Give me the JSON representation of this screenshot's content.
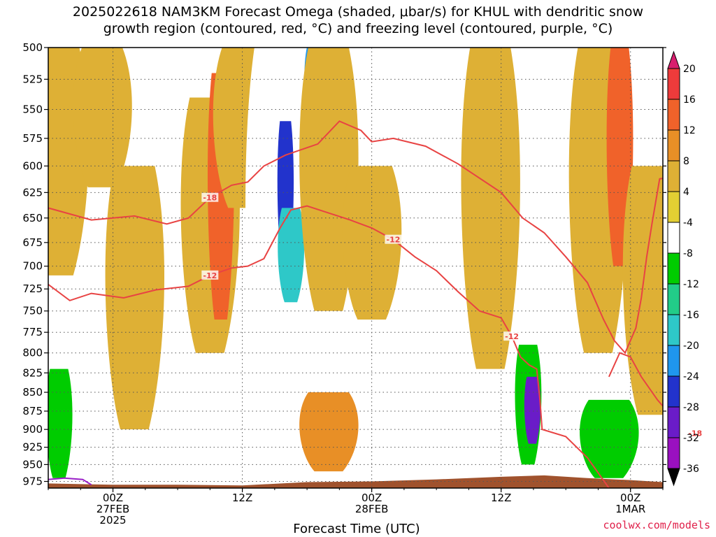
{
  "title_line1": "2025022618 NAM3KM Forecast Omega (shaded, μbar/s) for KHUL with dendritic snow",
  "title_line2": "growth region (contoured, red, °C) and freezing level (contoured, purple, °C)",
  "credit": "coolwx.com/models",
  "chart_data": {
    "type": "heatmap",
    "title": "2025022618 NAM3KM Forecast Omega (shaded, μbar/s) for KHUL with dendritic snow growth region (contoured, red, °C) and freezing level (contoured, purple, °C)",
    "xlabel": "Forecast Time (UTC)",
    "ylabel": "",
    "x_range_hours": [
      -6,
      51
    ],
    "y_range_hpa": [
      500,
      985
    ],
    "y_ticks": [
      500,
      525,
      550,
      575,
      600,
      625,
      650,
      675,
      700,
      725,
      750,
      775,
      800,
      825,
      850,
      875,
      900,
      925,
      950,
      975
    ],
    "x_ticks": [
      {
        "hour": 0,
        "labels": [
          "00Z",
          "27FEB",
          "2025"
        ]
      },
      {
        "hour": 12,
        "labels": [
          "12Z"
        ]
      },
      {
        "hour": 24,
        "labels": [
          "00Z",
          "28FEB"
        ]
      },
      {
        "hour": 36,
        "labels": [
          "12Z"
        ]
      },
      {
        "hour": 48,
        "labels": [
          "00Z",
          "1MAR"
        ]
      }
    ],
    "grid": true,
    "colorbar": {
      "levels": [
        20,
        16,
        12,
        8,
        4,
        -4,
        -8,
        -12,
        -16,
        -20,
        -24,
        -28,
        -32,
        -36
      ],
      "colors": [
        "#d81e6e",
        "#ee3b3b",
        "#f0622a",
        "#e88f26",
        "#deb035",
        "#e3cf33",
        "#ffffff",
        "#00cc00",
        "#22cc88",
        "#2ec8c8",
        "#1f96ee",
        "#2233cc",
        "#6a1cc8",
        "#9a10c0",
        "#a8a8a8",
        "#000000"
      ]
    },
    "omega_regions": [
      {
        "hour": -5,
        "p_top": 500,
        "p_bot": 710,
        "value": 5
      },
      {
        "hour": -1,
        "p_top": 500,
        "p_bot": 620,
        "value": 5
      },
      {
        "hour": 2,
        "p_top": 600,
        "p_bot": 900,
        "value": 5
      },
      {
        "hour": 9,
        "p_top": 540,
        "p_bot": 800,
        "value": 8
      },
      {
        "hour": 10,
        "p_top": 520,
        "p_bot": 760,
        "value": 13
      },
      {
        "hour": 12,
        "p_top": 500,
        "p_bot": 640,
        "value": 5
      },
      {
        "hour": 15,
        "p_top": 500,
        "p_bot": 900,
        "value": -6
      },
      {
        "hour": 16,
        "p_top": 560,
        "p_bot": 700,
        "value": -26
      },
      {
        "hour": 16.5,
        "p_top": 640,
        "p_bot": 740,
        "value": -18
      },
      {
        "hour": 18.5,
        "p_top": 500,
        "p_bot": 560,
        "value": -22
      },
      {
        "hour": 20,
        "p_top": 500,
        "p_bot": 750,
        "value": 6
      },
      {
        "hour": 24,
        "p_top": 600,
        "p_bot": 760,
        "value": 5
      },
      {
        "hour": 20,
        "p_top": 850,
        "p_bot": 960,
        "value": 9
      },
      {
        "hour": 35,
        "p_top": 500,
        "p_bot": 820,
        "value": 5
      },
      {
        "hour": 38.5,
        "p_top": 790,
        "p_bot": 950,
        "value": -10
      },
      {
        "hour": 38.9,
        "p_top": 830,
        "p_bot": 920,
        "value": -29
      },
      {
        "hour": 45,
        "p_top": 500,
        "p_bot": 800,
        "value": 8
      },
      {
        "hour": 47,
        "p_top": 500,
        "p_bot": 700,
        "value": 14
      },
      {
        "hour": 50,
        "p_top": 600,
        "p_bot": 880,
        "value": 5
      },
      {
        "hour": -5,
        "p_top": 820,
        "p_bot": 970,
        "value": -10
      },
      {
        "hour": 2,
        "p_top": 900,
        "p_bot": 970,
        "value": -6
      },
      {
        "hour": 46,
        "p_top": 860,
        "p_bot": 970,
        "value": -9
      }
    ],
    "contours": [
      {
        "level": -18,
        "color": "#e84343",
        "label": "-18",
        "points": [
          [
            -6,
            640
          ],
          [
            -2,
            652
          ],
          [
            2,
            648
          ],
          [
            5,
            656
          ],
          [
            7,
            650
          ],
          [
            9,
            630
          ],
          [
            11,
            618
          ],
          [
            12.5,
            615
          ],
          [
            14,
            600
          ],
          [
            16,
            590
          ],
          [
            19,
            580
          ],
          [
            21,
            560
          ],
          [
            23,
            568
          ],
          [
            24,
            578
          ],
          [
            26,
            575
          ],
          [
            29,
            582
          ],
          [
            32,
            598
          ],
          [
            36,
            625
          ],
          [
            38,
            650
          ],
          [
            40,
            665
          ],
          [
            42,
            690
          ],
          [
            44,
            718
          ],
          [
            45.5,
            760
          ],
          [
            46.5,
            785
          ],
          [
            47.5,
            800
          ],
          [
            48.5,
            770
          ],
          [
            49,
            735
          ],
          [
            49.5,
            690
          ],
          [
            50,
            655
          ],
          [
            50.7,
            612
          ],
          [
            52,
            610
          ],
          [
            53,
            612
          ],
          [
            55,
            640
          ]
        ]
      },
      {
        "level": -12,
        "color": "#e84343",
        "label": "-12",
        "points": [
          [
            -6,
            720
          ],
          [
            -4,
            738
          ],
          [
            -2,
            730
          ],
          [
            1,
            735
          ],
          [
            4,
            726
          ],
          [
            7,
            722
          ],
          [
            9,
            710
          ],
          [
            11,
            702
          ],
          [
            12.5,
            700
          ],
          [
            14,
            692
          ],
          [
            15.5,
            660
          ],
          [
            16.5,
            642
          ],
          [
            18,
            638
          ],
          [
            20,
            645
          ],
          [
            22,
            652
          ],
          [
            24,
            660
          ],
          [
            26,
            672
          ],
          [
            28,
            690
          ],
          [
            30,
            705
          ],
          [
            32,
            728
          ],
          [
            34,
            750
          ],
          [
            36,
            758
          ],
          [
            37,
            780
          ],
          [
            37.8,
            805
          ],
          [
            38.6,
            815
          ],
          [
            39.3,
            820
          ],
          [
            39.6,
            860
          ],
          [
            39.8,
            900
          ],
          [
            42,
            910
          ],
          [
            44,
            940
          ],
          [
            46,
            985
          ]
        ]
      },
      {
        "level": -18,
        "color": "#e84343",
        "label": "-18",
        "points": [
          [
            46,
            830
          ],
          [
            47,
            800
          ],
          [
            48,
            805
          ],
          [
            49,
            830
          ],
          [
            50.5,
            860
          ],
          [
            52,
            885
          ],
          [
            54,
            905
          ],
          [
            55,
            910
          ]
        ]
      },
      {
        "level": 0,
        "color": "#9a20c8",
        "label": "",
        "points": [
          [
            -6,
            972
          ],
          [
            -4.5,
            970
          ],
          [
            -2.8,
            972
          ],
          [
            -2,
            980
          ]
        ]
      }
    ]
  }
}
